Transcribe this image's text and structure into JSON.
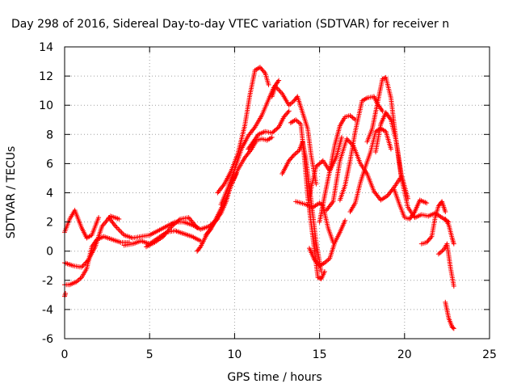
{
  "chart_data": {
    "type": "scatter",
    "title": "Day 298 of 2016, Sidereal Day-to-day VTEC variation (SDTVAR) for receiver n",
    "xlabel": "GPS time / hours",
    "ylabel": "SDTVAR / TECUs",
    "xlim": [
      0,
      25
    ],
    "ylim": [
      -6,
      14
    ],
    "xticks": [
      "0",
      "5",
      "10",
      "15",
      "20",
      "25"
    ],
    "yticks": [
      "-6",
      "-4",
      "-2",
      "0",
      "2",
      "4",
      "6",
      "8",
      "10",
      "12",
      "14"
    ],
    "grid": true,
    "legend": "none",
    "marker": "+",
    "color": "#ff0000",
    "tracks": [
      {
        "x": [
          0.0,
          0.3,
          0.6,
          1.0,
          1.3,
          1.6,
          2.0
        ],
        "y": [
          1.3,
          2.2,
          2.8,
          1.6,
          0.9,
          1.1,
          2.3
        ]
      },
      {
        "x": [
          0.0,
          0.5,
          1.0,
          1.4,
          1.8,
          2.2,
          2.7,
          3.2
        ],
        "y": [
          -0.8,
          -1.0,
          -1.1,
          -0.6,
          0.3,
          1.7,
          2.4,
          2.2
        ]
      },
      {
        "x": [
          0.0,
          0.3,
          0.7,
          1.0,
          1.3,
          1.6,
          1.9,
          2.3,
          2.8,
          3.3,
          3.8
        ],
        "y": [
          -2.3,
          -2.3,
          -2.1,
          -1.8,
          -1.2,
          0.3,
          0.8,
          1.0,
          0.8,
          0.6,
          0.6
        ]
      },
      {
        "x": [
          0.0,
          0.05
        ],
        "y": [
          -3.1,
          -2.9
        ]
      },
      {
        "x": [
          2.6,
          3.0,
          3.5,
          4.0,
          4.5,
          5.0,
          5.5,
          6.0,
          6.5,
          7.0,
          7.5,
          8.0,
          8.5,
          9.0
        ],
        "y": [
          2.3,
          1.7,
          1.1,
          0.9,
          1.0,
          1.1,
          1.4,
          1.7,
          2.0,
          2.0,
          1.8,
          1.5,
          1.7,
          2.2
        ]
      },
      {
        "x": [
          3.5,
          4.0,
          4.5,
          5.0,
          5.5,
          6.0,
          6.5,
          7.0,
          7.5,
          8.0
        ],
        "y": [
          0.4,
          0.5,
          0.7,
          0.5,
          0.9,
          1.3,
          1.4,
          1.2,
          1.0,
          0.7
        ]
      },
      {
        "x": [
          4.8,
          5.3,
          5.8,
          6.3,
          6.8,
          7.3,
          7.8
        ],
        "y": [
          0.3,
          0.6,
          1.0,
          1.7,
          2.2,
          2.3,
          1.6
        ]
      },
      {
        "x": [
          7.8,
          8.0,
          8.3,
          8.6,
          8.9,
          9.2,
          9.5,
          9.8,
          10.1
        ],
        "y": [
          0.0,
          0.3,
          1.0,
          1.6,
          2.1,
          2.6,
          3.4,
          4.6,
          5.3
        ]
      },
      {
        "x": [
          8.3,
          8.6,
          8.9,
          9.2,
          9.5,
          9.8,
          10.2,
          10.6,
          11.0,
          11.3,
          11.6,
          11.9,
          12.2
        ],
        "y": [
          1.1,
          1.5,
          2.2,
          2.9,
          3.6,
          4.5,
          5.6,
          6.4,
          7.0,
          7.6,
          7.7,
          7.6,
          7.8
        ]
      },
      {
        "x": [
          9.0,
          9.4,
          9.8,
          10.2,
          10.6,
          10.9,
          11.2,
          11.5,
          11.8,
          12.0
        ],
        "y": [
          4.0,
          4.6,
          5.5,
          6.7,
          8.6,
          10.7,
          12.4,
          12.6,
          12.2,
          11.4
        ]
      },
      {
        "x": [
          9.2,
          9.6,
          10.0,
          10.4,
          10.8,
          11.2,
          11.6,
          12.0,
          12.3,
          12.6
        ],
        "y": [
          3.2,
          4.3,
          5.6,
          7.0,
          7.9,
          8.5,
          9.3,
          10.4,
          11.2,
          11.7
        ]
      },
      {
        "x": [
          10.8,
          11.1,
          11.4,
          11.8,
          12.2,
          12.6,
          12.9,
          13.2
        ],
        "y": [
          7.0,
          7.5,
          8.0,
          8.2,
          8.1,
          8.5,
          9.2,
          9.6
        ]
      },
      {
        "x": [
          12.2,
          12.4,
          12.8,
          13.2,
          13.5,
          13.7,
          14.0,
          14.3,
          14.5,
          14.8
        ],
        "y": [
          10.6,
          11.3,
          10.8,
          10.0,
          10.3,
          10.6,
          9.5,
          8.4,
          6.6,
          4.6
        ]
      },
      {
        "x": [
          12.8,
          13.2,
          13.5,
          13.8,
          14.0,
          14.2,
          14.5,
          14.8,
          15.1
        ],
        "y": [
          5.3,
          6.2,
          6.6,
          6.9,
          7.5,
          6.3,
          3.5,
          0.6,
          -1.4
        ]
      },
      {
        "x": [
          13.3,
          13.6,
          13.9,
          14.1,
          14.3,
          14.6,
          14.9,
          15.1,
          15.3
        ],
        "y": [
          8.8,
          9.0,
          8.7,
          6.5,
          3.8,
          1.0,
          -1.8,
          -1.9,
          -1.4
        ]
      },
      {
        "x": [
          13.6,
          13.9,
          14.2,
          14.6,
          15.0,
          15.2,
          15.5,
          15.8
        ],
        "y": [
          3.4,
          3.3,
          3.2,
          3.0,
          3.3,
          3.1,
          1.6,
          0.6
        ]
      },
      {
        "x": [
          14.4,
          14.8,
          15.2,
          15.6,
          16.0,
          16.3
        ],
        "y": [
          3.8,
          5.8,
          6.2,
          5.5,
          6.5,
          7.8
        ]
      },
      {
        "x": [
          14.4,
          14.7,
          15.0,
          15.3,
          15.6,
          15.9,
          16.2,
          16.5
        ],
        "y": [
          0.2,
          -0.6,
          -1.0,
          -0.8,
          -0.5,
          0.6,
          1.3,
          2.1
        ]
      },
      {
        "x": [
          15.0,
          15.3,
          15.6,
          15.9,
          16.2,
          16.5,
          16.8,
          17.1
        ],
        "y": [
          2.0,
          3.8,
          5.5,
          7.3,
          8.6,
          9.2,
          9.3,
          9.0
        ]
      },
      {
        "x": [
          16.2,
          16.5,
          16.8,
          17.1,
          17.5,
          17.8,
          18.2,
          18.4,
          18.7
        ],
        "y": [
          3.5,
          4.5,
          6.2,
          8.2,
          10.3,
          10.5,
          10.6,
          10.1,
          9.6
        ]
      },
      {
        "x": [
          16.8,
          17.1,
          17.4,
          17.7,
          18.0,
          18.3,
          18.6,
          18.9,
          19.2
        ],
        "y": [
          2.7,
          3.3,
          4.7,
          5.8,
          6.8,
          8.2,
          8.4,
          8.2,
          7.0
        ]
      },
      {
        "x": [
          15.4,
          15.8,
          16.2,
          16.6,
          17.0,
          17.4,
          17.8,
          18.2,
          18.6,
          19.0,
          19.4,
          19.8
        ],
        "y": [
          2.8,
          3.4,
          6.2,
          7.7,
          7.2,
          6.0,
          5.3,
          4.1,
          3.5,
          3.8,
          4.4,
          5.1
        ]
      },
      {
        "x": [
          17.8,
          18.1,
          18.4,
          18.7,
          18.9,
          19.2,
          19.5,
          19.8,
          20.2
        ],
        "y": [
          7.5,
          8.4,
          10.1,
          11.8,
          11.9,
          10.5,
          7.6,
          5.3,
          3.6
        ]
      },
      {
        "x": [
          18.3,
          18.6,
          18.9,
          19.2,
          19.5,
          19.8,
          20.2,
          20.6,
          21.0,
          21.4,
          21.8,
          22.2,
          22.6
        ],
        "y": [
          6.8,
          8.7,
          9.5,
          9.0,
          7.6,
          5.1,
          3.0,
          2.3,
          2.5,
          2.4,
          2.6,
          2.3,
          2.0
        ]
      },
      {
        "x": [
          19.4,
          19.7,
          20.0,
          20.3,
          20.6,
          20.9,
          21.3
        ],
        "y": [
          4.2,
          3.2,
          2.3,
          2.2,
          2.7,
          3.5,
          3.3
        ]
      },
      {
        "x": [
          21.0,
          21.3,
          21.6,
          21.8,
          22.0,
          22.2,
          22.4
        ],
        "y": [
          0.5,
          0.6,
          1.0,
          2.3,
          3.1,
          3.4,
          2.7
        ]
      },
      {
        "x": [
          22.0,
          22.3,
          22.5,
          22.7,
          22.9
        ],
        "y": [
          -0.2,
          0.1,
          0.5,
          -1.1,
          -2.4
        ]
      },
      {
        "x": [
          22.4,
          22.6,
          22.8,
          22.9
        ],
        "y": [
          2.2,
          1.8,
          0.9,
          0.5
        ]
      },
      {
        "x": [
          22.4,
          22.6,
          22.8,
          22.9
        ],
        "y": [
          -3.5,
          -4.6,
          -5.2,
          -5.3
        ]
      }
    ]
  }
}
